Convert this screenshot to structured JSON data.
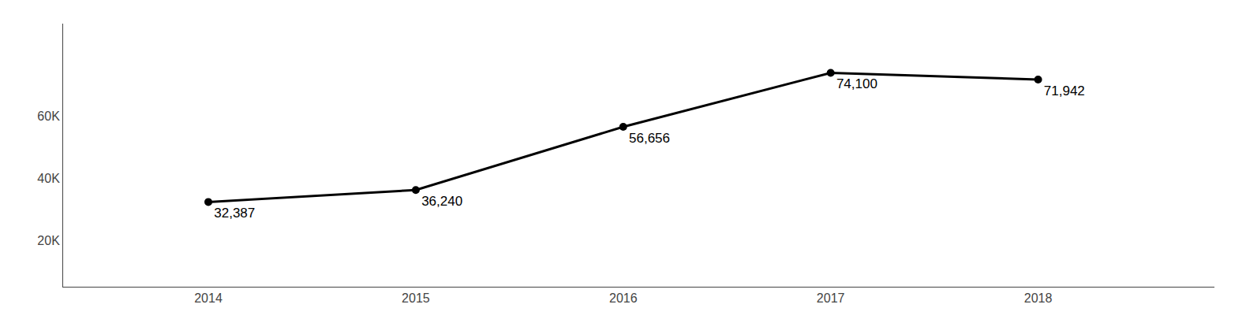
{
  "chart_data": {
    "type": "line",
    "x": [
      2014,
      2015,
      2016,
      2017,
      2018
    ],
    "values": [
      32387,
      36240,
      56656,
      74100,
      71942
    ],
    "value_labels": [
      "32,387",
      "36,240",
      "56,656",
      "74,100",
      "71,942"
    ],
    "data_labels": true,
    "color": "#000000",
    "marker": "circle",
    "xlim": [
      2013.3,
      2018.85
    ],
    "xticks": [
      2014,
      2015,
      2016,
      2017,
      2018
    ],
    "ylim": [
      5000,
      90000
    ],
    "yticks": [
      {
        "value": 20000,
        "label": "20K"
      },
      {
        "value": 40000,
        "label": "40K"
      },
      {
        "value": 60000,
        "label": "60K"
      }
    ],
    "grid": false
  }
}
